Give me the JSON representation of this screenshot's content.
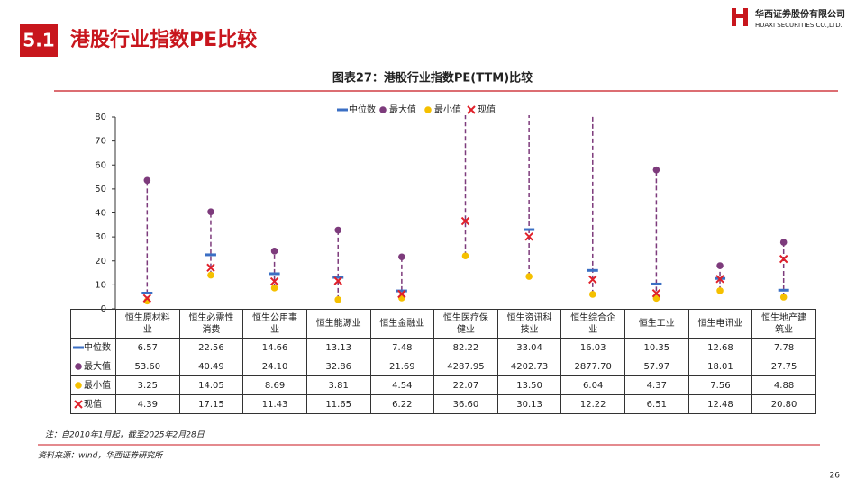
{
  "header": {
    "section": "5.1",
    "title": "港股行业指数PE比较",
    "company": "华西证券股份有限公司",
    "company_en": "HUAXI SECURITIES CO.,LTD."
  },
  "chart_data": {
    "type": "range-marker",
    "title": "图表27：港股行业指数PE(TTM)比较",
    "categories": [
      "恒生原材料业",
      "恒生必需性消费",
      "恒生公用事业",
      "恒生能源业",
      "恒生金融业",
      "恒生医疗保健业",
      "恒生资讯科技业",
      "恒生综合企业",
      "恒生工业",
      "恒生电讯业",
      "恒生地产建筑业"
    ],
    "series": [
      {
        "name": "中位数",
        "color": "#3b6fc4",
        "marker": "dash",
        "values": [
          6.57,
          22.56,
          14.66,
          13.13,
          7.48,
          82.22,
          33.04,
          16.03,
          10.35,
          12.68,
          7.78
        ],
        "value_labels": [
          "6.57",
          "22.56",
          "14.66",
          "13.13",
          "7.48",
          "82.22",
          "33.04",
          "16.03",
          "10.35",
          "12.68",
          "7.78"
        ]
      },
      {
        "name": "最大值",
        "color": "#7d3b7c",
        "marker": "circle",
        "values": [
          53.6,
          40.49,
          24.1,
          32.86,
          21.69,
          4287.95,
          4202.73,
          2877.7,
          57.97,
          18.01,
          27.75
        ],
        "value_labels": [
          "53.60",
          "40.49",
          "24.10",
          "32.86",
          "21.69",
          "4287.95",
          "4202.73",
          "2877.70",
          "57.97",
          "18.01",
          "27.75"
        ]
      },
      {
        "name": "最小值",
        "color": "#f5c000",
        "marker": "circle",
        "values": [
          3.25,
          14.05,
          8.69,
          3.81,
          4.54,
          22.07,
          13.5,
          6.04,
          4.37,
          7.56,
          4.88
        ],
        "value_labels": [
          "3.25",
          "14.05",
          "8.69",
          "3.81",
          "4.54",
          "22.07",
          "13.50",
          "6.04",
          "4.37",
          "7.56",
          "4.88"
        ]
      },
      {
        "name": "现值",
        "color": "#e0202a",
        "marker": "x",
        "values": [
          4.39,
          17.15,
          11.43,
          11.65,
          6.22,
          36.6,
          30.13,
          12.22,
          6.51,
          12.48,
          20.8
        ],
        "value_labels": [
          "4.39",
          "17.15",
          "11.43",
          "11.65",
          "6.22",
          "36.60",
          "30.13",
          "12.22",
          "6.51",
          "12.48",
          "20.80"
        ]
      }
    ],
    "ylim": [
      0,
      80
    ],
    "yticks": [
      0,
      10,
      20,
      30,
      40,
      50,
      60,
      70,
      80
    ],
    "grid": false,
    "legend": "top"
  },
  "footer": {
    "note": "注：自2010年1月起，截至2025年2月28日",
    "source": "资料来源：wind，华西证券研究所",
    "page": "26"
  }
}
